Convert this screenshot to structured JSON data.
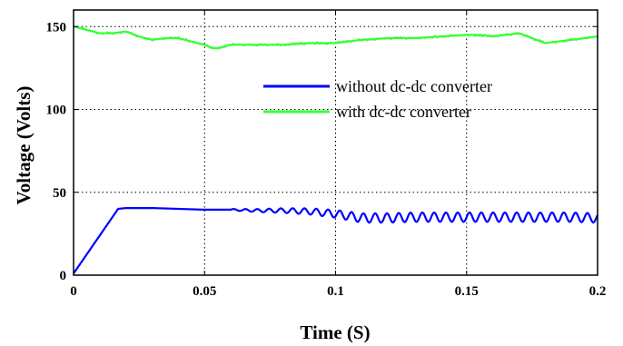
{
  "chart_data": {
    "type": "line",
    "xlabel": "Time (S)",
    "ylabel": "Voltage (Volts)",
    "xlim": [
      0,
      0.2
    ],
    "ylim": [
      0,
      160
    ],
    "x_ticks": [
      "0",
      "0.05",
      "0.1",
      "0.15",
      "0.2"
    ],
    "y_ticks": [
      "0",
      "50",
      "100",
      "150"
    ],
    "grid": true,
    "legend_position": "center-right",
    "series": [
      {
        "name": "without dc-dc converter",
        "color": "#0000ff",
        "x": [
          0,
          0.017,
          0.02,
          0.03,
          0.04,
          0.05,
          0.06,
          0.07,
          0.08,
          0.09,
          0.1,
          0.11,
          0.12,
          0.13,
          0.14,
          0.15,
          0.16,
          0.17,
          0.18,
          0.19,
          0.2
        ],
        "y": [
          1,
          40,
          40.5,
          40.5,
          40,
          39.5,
          39.5,
          39,
          39,
          38.5,
          37,
          34.5,
          34.5,
          35,
          35,
          35,
          35,
          35,
          35,
          35,
          34.5
        ],
        "oscillation": {
          "start_x": 0.06,
          "period": 0.0045,
          "amplitude": [
            0.4,
            2.8
          ]
        }
      },
      {
        "name": "with dc-dc converter",
        "color": "#33ff33",
        "x": [
          0,
          0.005,
          0.01,
          0.015,
          0.02,
          0.025,
          0.03,
          0.035,
          0.04,
          0.045,
          0.05,
          0.053,
          0.055,
          0.06,
          0.065,
          0.07,
          0.08,
          0.09,
          0.1,
          0.11,
          0.12,
          0.13,
          0.14,
          0.15,
          0.155,
          0.16,
          0.165,
          0.17,
          0.175,
          0.18,
          0.185,
          0.19,
          0.195,
          0.2
        ],
        "y": [
          150,
          148,
          146,
          146,
          147,
          144,
          142,
          143,
          143,
          141,
          139,
          137,
          137,
          139,
          139,
          139,
          139,
          140,
          140,
          142,
          143,
          143,
          144,
          145,
          145,
          144,
          145,
          146,
          143,
          140,
          141,
          142,
          143,
          144
        ],
        "jitter": 0.6
      }
    ]
  }
}
